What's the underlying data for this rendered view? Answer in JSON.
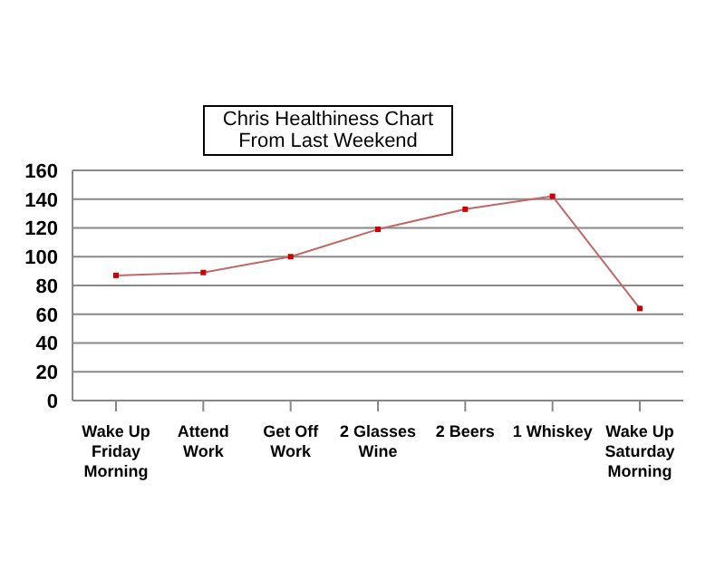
{
  "chart_data": {
    "type": "line",
    "title": "Chris Healthiness Chart\nFrom Last Weekend",
    "categories": [
      "Wake Up Friday Morning",
      "Attend Work",
      "Get Off Work",
      "2 Glasses Wine",
      "2 Beers",
      "1 Whiskey",
      "Wake Up Saturday Morning"
    ],
    "series": [
      {
        "color": "#c06868",
        "values": [
          87,
          89,
          100,
          119,
          133,
          142,
          64
        ]
      }
    ],
    "ylim": [
      0,
      160
    ],
    "yticks": [
      0,
      20,
      40,
      60,
      80,
      100,
      120,
      140,
      160
    ],
    "grid": "y",
    "marker": "square",
    "legend": false
  }
}
